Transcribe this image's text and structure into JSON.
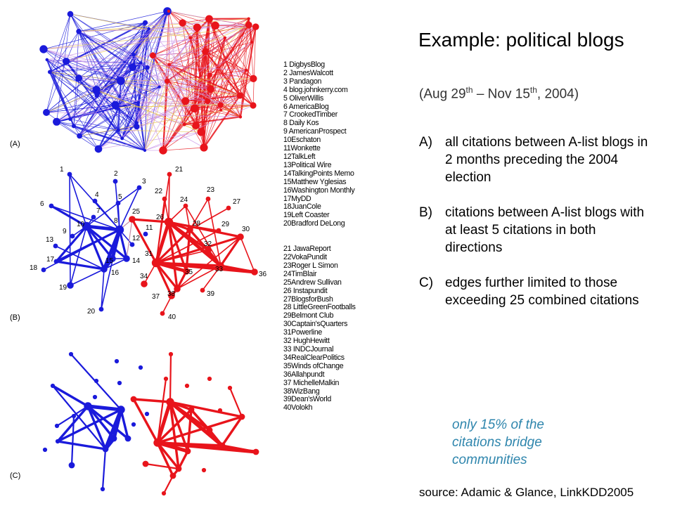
{
  "title": "Example: political blogs",
  "dates": {
    "prefix": "(Aug 29",
    "sup1": "th",
    "middle": " – Nov 15",
    "sup2": "th",
    "suffix": ", 2004)"
  },
  "panels": [
    "(A)",
    "(B)",
    "(C)"
  ],
  "blogs": [
    "1 DigbysBlog",
    "2  JamesWalcott",
    "3 Pandagon",
    "4  blog.johnkerry.com",
    "5 OliverWillis",
    "6 AmericaBlog",
    "7 CrookedTimber",
    "8 Daily Kos",
    "9 AmericanProspect",
    "10Eschaton",
    "11Wonkette",
    "12TalkLeft",
    "13Political Wire",
    "14TalkingPoints Memo",
    "15Matthew Yglesias",
    "16Washington Monthly",
    "17MyDD",
    "18JuanCole",
    "19Left Coaster",
    "20Bradford DeLong",
    "21 JawaReport",
    "22VokaPundit",
    "23Roger L Simon",
    "24TimBlair",
    "25Andrew Sullivan",
    "26 Instapundit",
    "27BlogsforBush",
    "28 LittleGreenFootballs",
    "29Belmont Club",
    "30Captain'sQuarters",
    "31Powerline",
    "32 HughHewitt",
    "33 INDCJournal",
    "34RealClearPolitics",
    "35Winds ofChange",
    "36Allahpundt",
    "37 MichelleMalkin",
    "38WizBang",
    "39Dean'sWorld",
    "40Volokh"
  ],
  "criteria": [
    {
      "mark": "A)",
      "text": "all citations between A-list blogs in 2 months preceding the 2004 election"
    },
    {
      "mark": "B)",
      "text": "citations between A-list blogs with at least 5 citations in both directions"
    },
    {
      "mark": "C)",
      "text": "edges further limited to those exceeding 25 combined citations"
    }
  ],
  "note": "only 15% of the citations bridge communities",
  "source": "source: Adamic & Glance, LinkKDD2005",
  "colors": {
    "liberal": "#1a1adb",
    "conservative": "#e8141b",
    "cross_a": "#c78fe6",
    "cross_b": "#e8c24a",
    "note": "#2f86ad"
  },
  "network_b": {
    "nodes": [
      {
        "id": 1,
        "side": "L",
        "w": 1
      },
      {
        "id": 2,
        "side": "L",
        "w": 1
      },
      {
        "id": 3,
        "side": "L",
        "w": 1
      },
      {
        "id": 4,
        "side": "L",
        "w": 1
      },
      {
        "id": 5,
        "side": "L",
        "w": 1
      },
      {
        "id": 6,
        "side": "L",
        "w": 1
      },
      {
        "id": 7,
        "side": "L",
        "w": 1
      },
      {
        "id": 8,
        "side": "L",
        "w": 3
      },
      {
        "id": 9,
        "side": "L",
        "w": 1
      },
      {
        "id": 10,
        "side": "L",
        "w": 3
      },
      {
        "id": 11,
        "side": "L",
        "w": 1
      },
      {
        "id": 12,
        "side": "L",
        "w": 1
      },
      {
        "id": 13,
        "side": "L",
        "w": 1
      },
      {
        "id": 14,
        "side": "L",
        "w": 2
      },
      {
        "id": 15,
        "side": "L",
        "w": 2
      },
      {
        "id": 16,
        "side": "L",
        "w": 2
      },
      {
        "id": 17,
        "side": "L",
        "w": 1
      },
      {
        "id": 18,
        "side": "L",
        "w": 1
      },
      {
        "id": 19,
        "side": "L",
        "w": 2
      },
      {
        "id": 20,
        "side": "L",
        "w": 1
      },
      {
        "id": 21,
        "side": "R",
        "w": 1
      },
      {
        "id": 22,
        "side": "R",
        "w": 1
      },
      {
        "id": 23,
        "side": "R",
        "w": 1
      },
      {
        "id": 24,
        "side": "R",
        "w": 1
      },
      {
        "id": 25,
        "side": "R",
        "w": 2
      },
      {
        "id": 26,
        "side": "R",
        "w": 3
      },
      {
        "id": 27,
        "side": "R",
        "w": 1
      },
      {
        "id": 28,
        "side": "R",
        "w": 2
      },
      {
        "id": 29,
        "side": "R",
        "w": 1
      },
      {
        "id": 30,
        "side": "R",
        "w": 2
      },
      {
        "id": 31,
        "side": "R",
        "w": 3
      },
      {
        "id": 32,
        "side": "R",
        "w": 2
      },
      {
        "id": 33,
        "side": "R",
        "w": 2
      },
      {
        "id": 34,
        "side": "R",
        "w": 2
      },
      {
        "id": 35,
        "side": "R",
        "w": 2
      },
      {
        "id": 36,
        "side": "R",
        "w": 2
      },
      {
        "id": 37,
        "side": "R",
        "w": 2
      },
      {
        "id": 38,
        "side": "R",
        "w": 2
      },
      {
        "id": 39,
        "side": "R",
        "w": 1
      },
      {
        "id": 40,
        "side": "R",
        "w": 1
      }
    ],
    "edges": [
      [
        1,
        10,
        1
      ],
      [
        1,
        8,
        1
      ],
      [
        1,
        19,
        1
      ],
      [
        3,
        8,
        1
      ],
      [
        3,
        10,
        1
      ],
      [
        6,
        10,
        2
      ],
      [
        6,
        8,
        1
      ],
      [
        10,
        8,
        3
      ],
      [
        10,
        15,
        2
      ],
      [
        10,
        14,
        2
      ],
      [
        10,
        16,
        2
      ],
      [
        10,
        17,
        2
      ],
      [
        10,
        9,
        1
      ],
      [
        8,
        15,
        3
      ],
      [
        8,
        16,
        3
      ],
      [
        8,
        14,
        2
      ],
      [
        8,
        12,
        1
      ],
      [
        15,
        16,
        3
      ],
      [
        15,
        14,
        1
      ],
      [
        16,
        14,
        1
      ],
      [
        17,
        16,
        2
      ],
      [
        17,
        8,
        2
      ],
      [
        19,
        10,
        1
      ],
      [
        19,
        16,
        1
      ],
      [
        20,
        16,
        1
      ],
      [
        20,
        8,
        1
      ],
      [
        13,
        16,
        1
      ],
      [
        18,
        8,
        1
      ],
      [
        4,
        8,
        1
      ],
      [
        5,
        8,
        1
      ],
      [
        7,
        10,
        1
      ],
      [
        2,
        8,
        1
      ],
      [
        26,
        31,
        3
      ],
      [
        26,
        28,
        2
      ],
      [
        26,
        33,
        3
      ],
      [
        26,
        30,
        2
      ],
      [
        26,
        32,
        2
      ],
      [
        26,
        35,
        2
      ],
      [
        26,
        38,
        2
      ],
      [
        26,
        21,
        1
      ],
      [
        26,
        22,
        1
      ],
      [
        26,
        24,
        1
      ],
      [
        28,
        33,
        2
      ],
      [
        28,
        31,
        2
      ],
      [
        28,
        35,
        2
      ],
      [
        28,
        23,
        1
      ],
      [
        28,
        24,
        1
      ],
      [
        28,
        32,
        2
      ],
      [
        31,
        33,
        2
      ],
      [
        31,
        35,
        3
      ],
      [
        31,
        38,
        2
      ],
      [
        31,
        37,
        2
      ],
      [
        31,
        30,
        2
      ],
      [
        31,
        36,
        3
      ],
      [
        33,
        36,
        2
      ],
      [
        33,
        30,
        2
      ],
      [
        32,
        33,
        2
      ],
      [
        32,
        31,
        1
      ],
      [
        30,
        38,
        1
      ],
      [
        37,
        38,
        2
      ],
      [
        37,
        40,
        1
      ],
      [
        38,
        33,
        1
      ],
      [
        29,
        31,
        1
      ],
      [
        29,
        26,
        1
      ],
      [
        27,
        28,
        1
      ],
      [
        21,
        31,
        1
      ],
      [
        22,
        31,
        1
      ],
      [
        23,
        33,
        1
      ],
      [
        25,
        26,
        2
      ],
      [
        25,
        31,
        2
      ],
      [
        34,
        31,
        1
      ],
      [
        39,
        33,
        1
      ],
      [
        35,
        38,
        2
      ],
      [
        24,
        33,
        1
      ],
      [
        36,
        30,
        1
      ]
    ],
    "cross_edges": [
      [
        8,
        25,
        1
      ],
      [
        14,
        25,
        1
      ]
    ]
  }
}
